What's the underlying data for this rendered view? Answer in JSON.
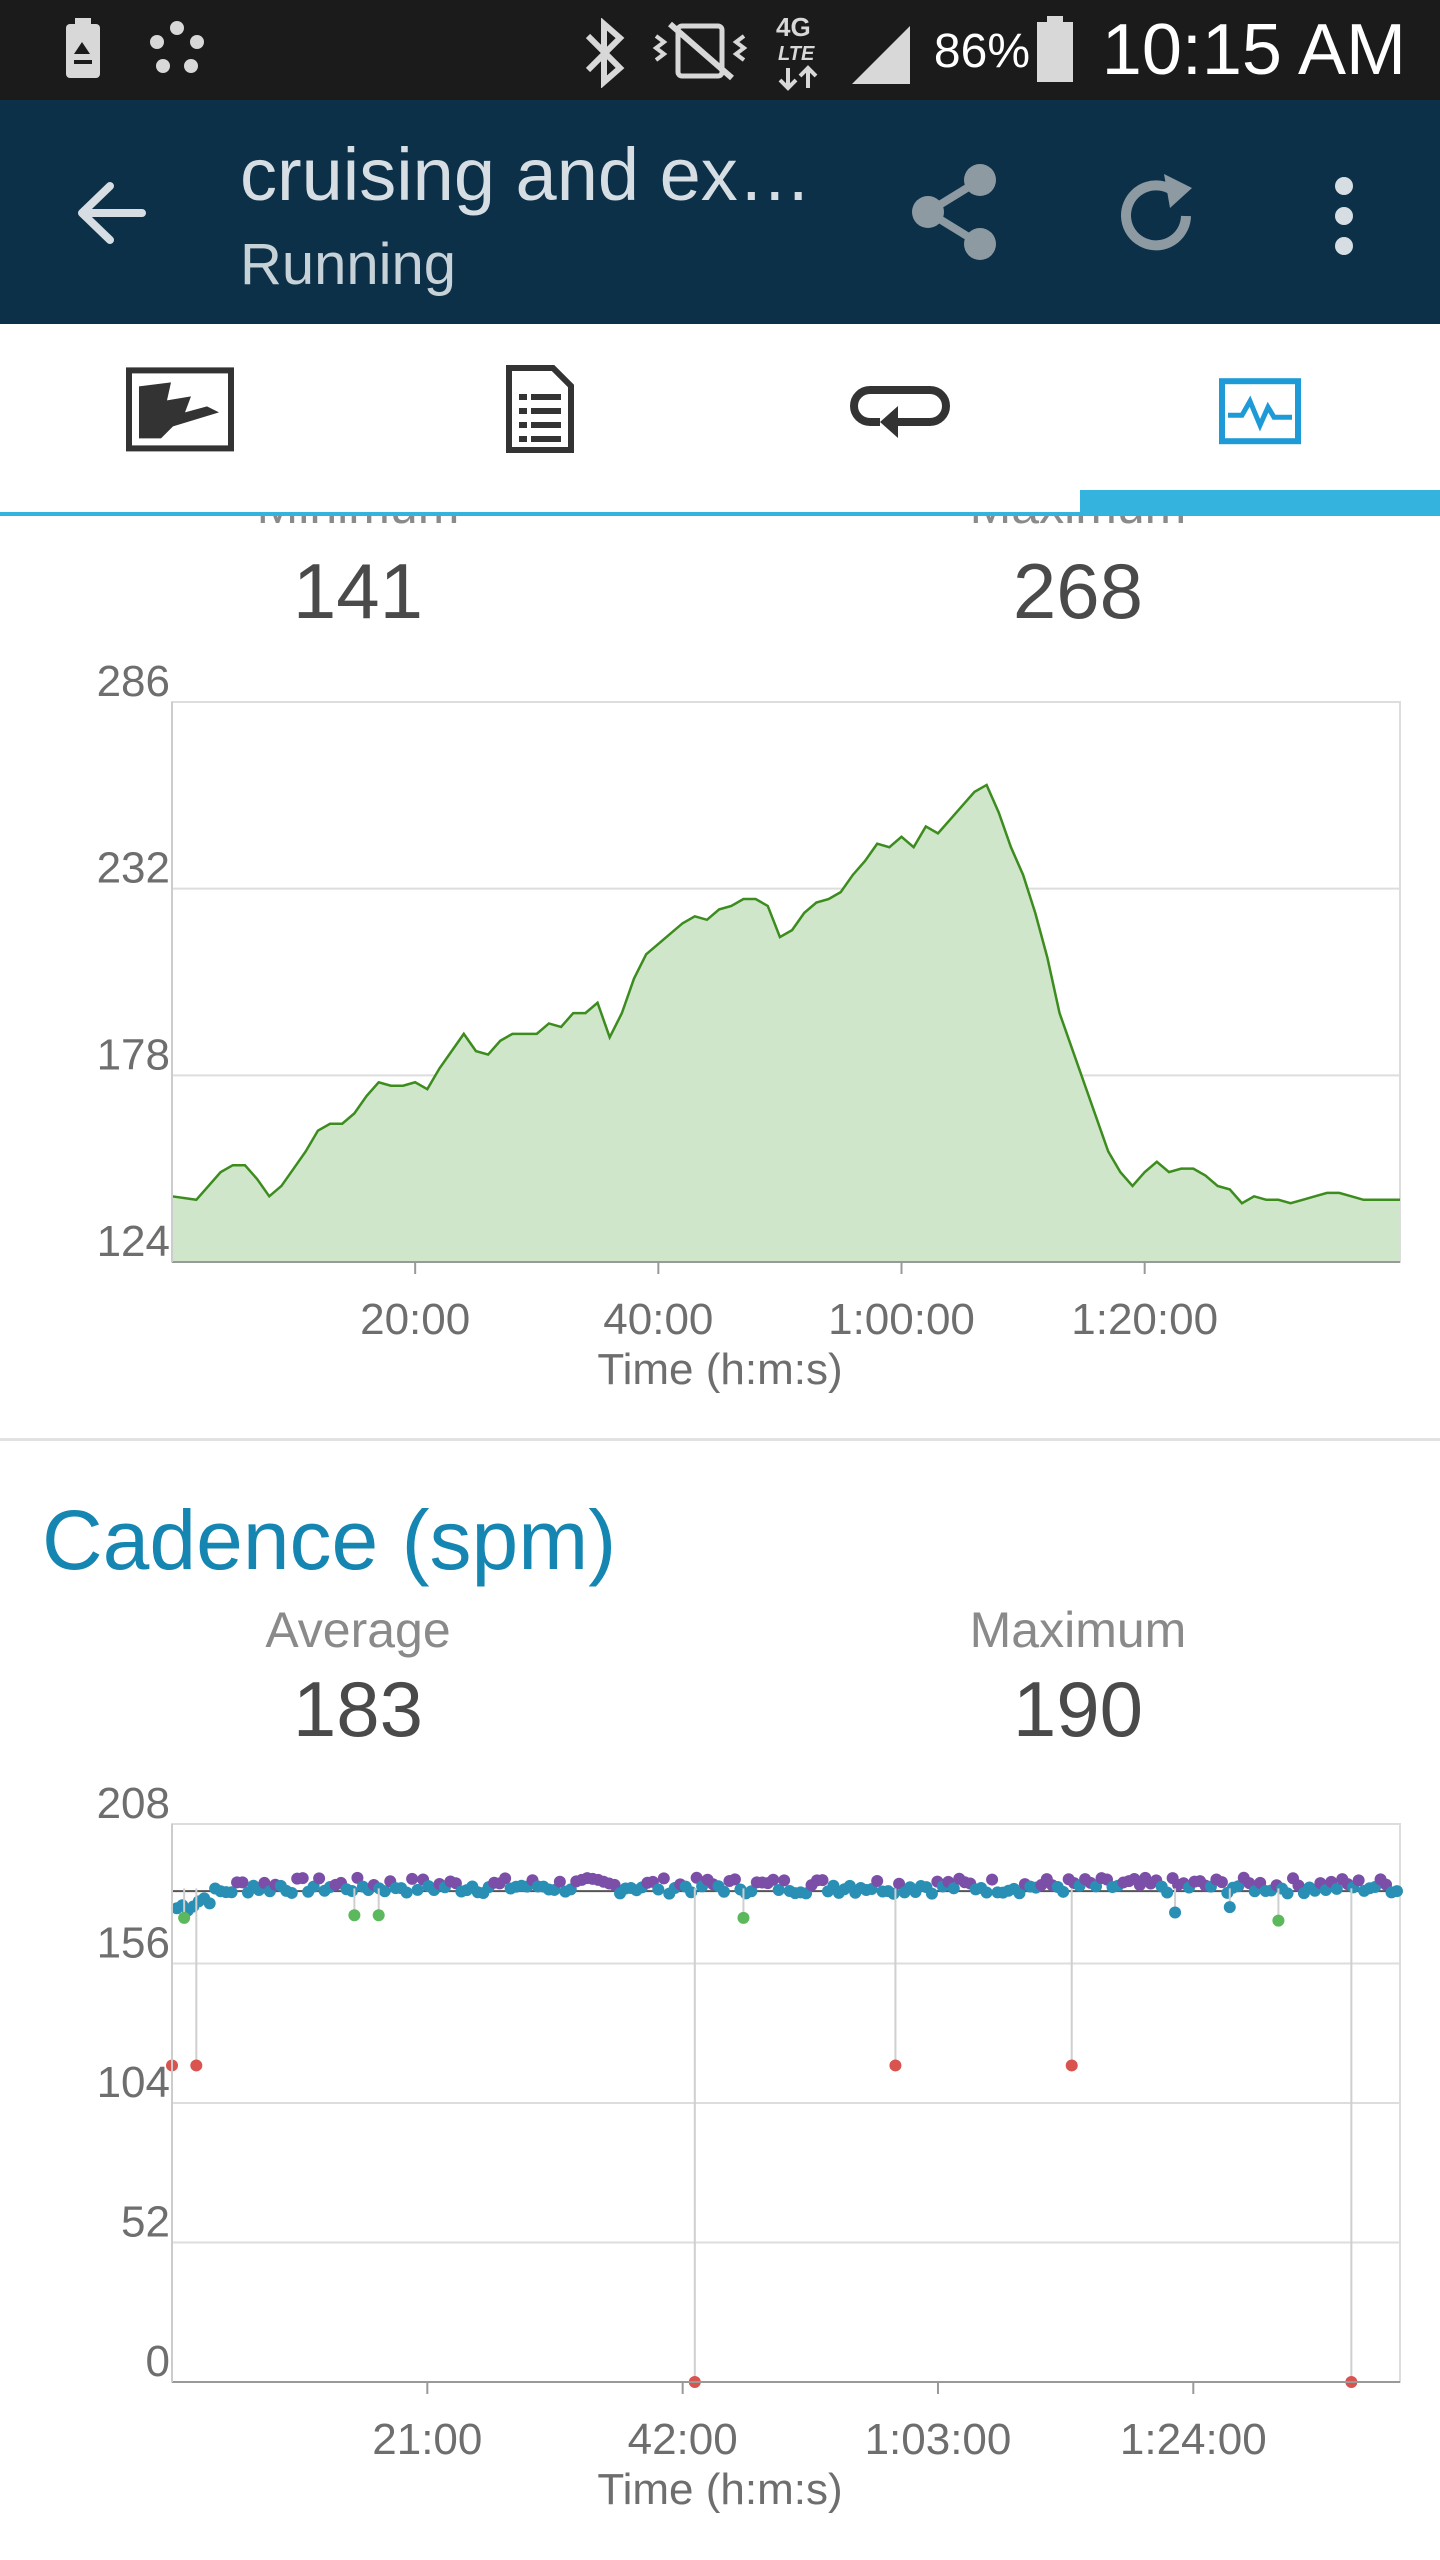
{
  "status_bar": {
    "battery_percent": "86%",
    "time": "10:15 AM",
    "icons": [
      "battery-saver-icon",
      "dots-app-icon",
      "bluetooth-icon",
      "vibrate-silent-icon",
      "4g-lte-icon",
      "signal-icon",
      "battery-icon"
    ]
  },
  "app_bar": {
    "title": "cruising and ex…",
    "subtitle": "Running",
    "icons": [
      "back-arrow-icon",
      "share-icon",
      "sync-icon",
      "overflow-menu-icon"
    ]
  },
  "tabs": {
    "items": [
      {
        "icon": "map-icon"
      },
      {
        "icon": "details-icon"
      },
      {
        "icon": "laps-icon"
      },
      {
        "icon": "charts-icon",
        "selected": true
      }
    ]
  },
  "colors": {
    "app_bar": "#0c3048",
    "accent": "#35b3df",
    "section_title": "#1586b1",
    "area_fill": "#d0e6cb",
    "area_line": "#3c8c1e",
    "cadence_purple": "#7b4fa8",
    "cadence_blue": "#2a8fb5",
    "cadence_green": "#5cb85c",
    "cadence_red": "#d9534f"
  },
  "section1": {
    "min_label": "Minimum",
    "min_value": "141",
    "max_label": "Maximum",
    "max_value": "268"
  },
  "section2": {
    "title": "Cadence (spm)",
    "avg_label": "Average",
    "avg_value": "183",
    "max_label": "Maximum",
    "max_value": "190"
  },
  "chart_data": [
    {
      "type": "area",
      "title": "",
      "xlabel": "Time (h:m:s)",
      "ylabel": "",
      "ylim": [
        124,
        286
      ],
      "yticks": [
        "124",
        "178",
        "232",
        "286"
      ],
      "xticks": [
        "20:00",
        "40:00",
        "1:00:00",
        "1:20:00"
      ],
      "xlim_minutes": [
        0,
        101
      ],
      "grid": true,
      "x_minutes": [
        0,
        2,
        4,
        5,
        6,
        7,
        8,
        9,
        10,
        11,
        12,
        13,
        14,
        15,
        16,
        17,
        18,
        19,
        20,
        21,
        22,
        23,
        24,
        25,
        26,
        27,
        28,
        29,
        30,
        31,
        32,
        33,
        34,
        35,
        36,
        37,
        38,
        39,
        40,
        41,
        42,
        43,
        44,
        45,
        46,
        47,
        48,
        49,
        50,
        51,
        52,
        53,
        54,
        55,
        56,
        57,
        58,
        59,
        60,
        61,
        62,
        63,
        64,
        65,
        66,
        67,
        68,
        69,
        70,
        71,
        72,
        73,
        74,
        75,
        76,
        77,
        78,
        79,
        80,
        81,
        82,
        83,
        84,
        85,
        86,
        87,
        88,
        89,
        90,
        91,
        92,
        93,
        94,
        95,
        96,
        97,
        98,
        99,
        100,
        101
      ],
      "y_values": [
        143,
        142,
        150,
        152,
        152,
        148,
        143,
        146,
        151,
        156,
        162,
        164,
        164,
        167,
        172,
        176,
        175,
        175,
        176,
        174,
        180,
        185,
        190,
        185,
        184,
        188,
        190,
        190,
        190,
        193,
        192,
        196,
        196,
        199,
        189,
        196,
        206,
        213,
        216,
        219,
        222,
        224,
        223,
        226,
        227,
        229,
        229,
        227,
        218,
        220,
        225,
        228,
        229,
        231,
        236,
        240,
        245,
        244,
        247,
        244,
        250,
        248,
        252,
        256,
        260,
        262,
        254,
        244,
        236,
        225,
        212,
        196,
        186,
        176,
        166,
        156,
        150,
        146,
        150,
        153,
        150,
        151,
        151,
        149,
        146,
        145,
        141,
        143,
        142,
        142,
        141,
        142,
        143,
        144,
        144,
        143,
        142,
        142,
        142,
        142
      ]
    },
    {
      "type": "scatter",
      "title": "Cadence (spm)",
      "xlabel": "Time (h:m:s)",
      "ylabel": "",
      "ylim": [
        0,
        208
      ],
      "yticks": [
        "0",
        "52",
        "104",
        "156",
        "208"
      ],
      "xticks": [
        "21:00",
        "42:00",
        "1:03:00",
        "1:24:00"
      ],
      "xlim_minutes": [
        0,
        101
      ],
      "average": 183,
      "grid": true,
      "outliers_minutes": [
        {
          "x": 0,
          "y": 118,
          "color": "red"
        },
        {
          "x": 2,
          "y": 118,
          "color": "red"
        },
        {
          "x": 1,
          "y": 173,
          "color": "green"
        },
        {
          "x": 15,
          "y": 174,
          "color": "green"
        },
        {
          "x": 17,
          "y": 174,
          "color": "green"
        },
        {
          "x": 43,
          "y": 0,
          "color": "red"
        },
        {
          "x": 47,
          "y": 173,
          "color": "green"
        },
        {
          "x": 59.5,
          "y": 118,
          "color": "red"
        },
        {
          "x": 74,
          "y": 118,
          "color": "red"
        },
        {
          "x": 82.5,
          "y": 175,
          "color": "blue"
        },
        {
          "x": 87,
          "y": 177,
          "color": "blue"
        },
        {
          "x": 91,
          "y": 172,
          "color": "green"
        },
        {
          "x": 97,
          "y": 0,
          "color": "red"
        }
      ],
      "baseline_series": [
        {
          "name": "",
          "x_range": [
            0,
            101
          ],
          "values_approx": "176-190"
        }
      ]
    }
  ]
}
